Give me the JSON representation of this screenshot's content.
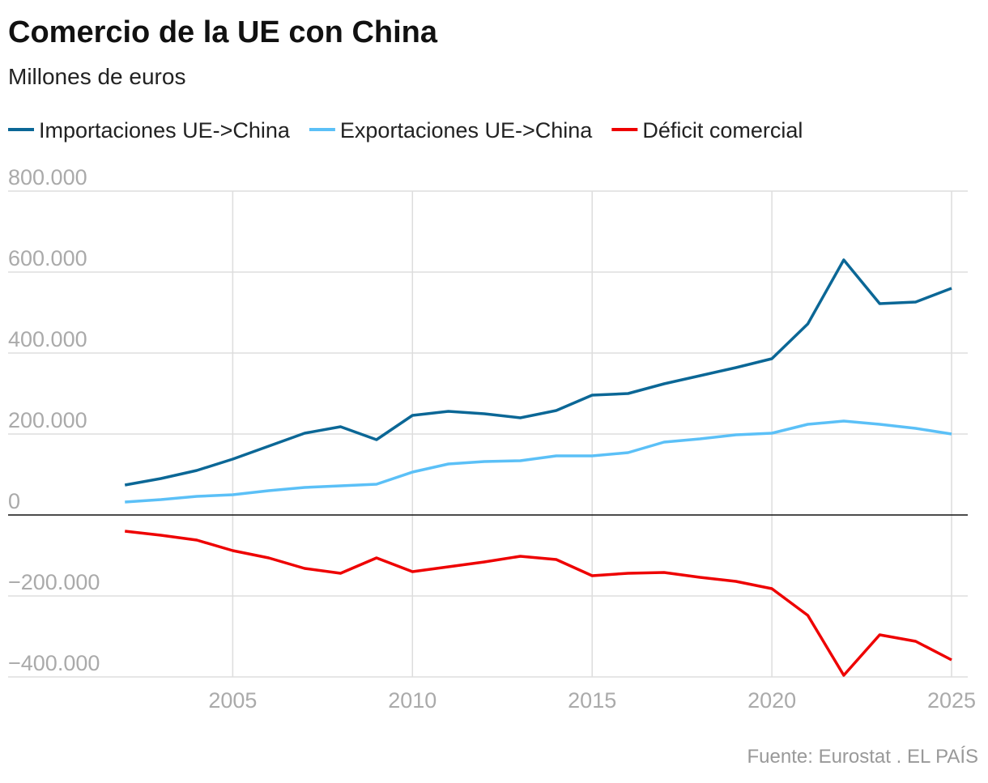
{
  "chart_data": {
    "type": "line",
    "title": "Comercio de la UE con China",
    "subtitle": "Millones de euros",
    "source": "Fuente: Eurostat . EL PAÍS",
    "x": [
      2002,
      2003,
      2004,
      2005,
      2006,
      2007,
      2008,
      2009,
      2010,
      2011,
      2012,
      2013,
      2014,
      2015,
      2016,
      2017,
      2018,
      2019,
      2020,
      2021,
      2022,
      2023,
      2024,
      2025
    ],
    "series": [
      {
        "name": "Importaciones UE->China",
        "color": "#0b6796",
        "values": [
          74000,
          90000,
          110000,
          138000,
          170000,
          202000,
          218000,
          186000,
          246000,
          256000,
          250000,
          240000,
          258000,
          296000,
          300000,
          324000,
          344000,
          364000,
          386000,
          472000,
          630000,
          522000,
          526000,
          560000
        ]
      },
      {
        "name": "Exportaciones UE->China",
        "color": "#5bc0f7",
        "values": [
          32000,
          38000,
          46000,
          50000,
          60000,
          68000,
          72000,
          76000,
          106000,
          126000,
          132000,
          134000,
          146000,
          146000,
          154000,
          180000,
          188000,
          198000,
          202000,
          224000,
          232000,
          224000,
          214000,
          200000
        ]
      },
      {
        "name": "Déficit comercial",
        "color": "#ee0000",
        "values": [
          -40000,
          -50000,
          -62000,
          -88000,
          -106000,
          -132000,
          -144000,
          -106000,
          -140000,
          -128000,
          -116000,
          -102000,
          -110000,
          -150000,
          -144000,
          -142000,
          -154000,
          -164000,
          -182000,
          -248000,
          -396000,
          -296000,
          -312000,
          -358000
        ]
      }
    ],
    "xlim": [
      1998.75,
      2025.45
    ],
    "xticks": [
      2005,
      2010,
      2015,
      2020,
      2025
    ],
    "ylim": [
      -400000,
      800000
    ],
    "yticks": [
      {
        "value": -400000,
        "label": "−400.000"
      },
      {
        "value": -200000,
        "label": "−200.000"
      },
      0,
      {
        "value": 200000,
        "label": "200.000"
      },
      {
        "value": 400000,
        "label": "400.000"
      },
      {
        "value": 600000,
        "label": "600.000"
      },
      {
        "value": 800000,
        "label": "800.000"
      }
    ],
    "grid": true,
    "legend": "top"
  }
}
